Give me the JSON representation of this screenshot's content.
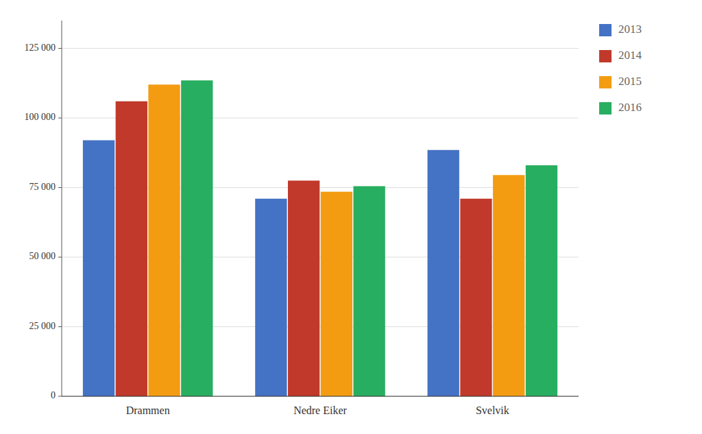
{
  "chart_data": {
    "type": "bar",
    "categories": [
      "Drammen",
      "Nedre Eiker",
      "Svelvik"
    ],
    "series": [
      {
        "name": "2013",
        "color": "#4472C4",
        "values": [
          92000,
          71000,
          88500
        ]
      },
      {
        "name": "2014",
        "color": "#C0392B",
        "values": [
          106000,
          77500,
          71000
        ]
      },
      {
        "name": "2015",
        "color": "#F39C12",
        "values": [
          112000,
          73500,
          79500
        ]
      },
      {
        "name": "2016",
        "color": "#27AE60",
        "values": [
          113500,
          75500,
          83000
        ]
      }
    ],
    "ylim": [
      0,
      135000
    ],
    "yticks": [
      0,
      {
        "value": 25000,
        "label": "25 000"
      },
      {
        "value": 50000,
        "label": "50 000"
      },
      {
        "value": 75000,
        "label": "75 000"
      },
      {
        "value": 100000,
        "label": "100 000"
      },
      {
        "value": 125000,
        "label": "125 000"
      }
    ],
    "grid": true,
    "legend": "right"
  }
}
